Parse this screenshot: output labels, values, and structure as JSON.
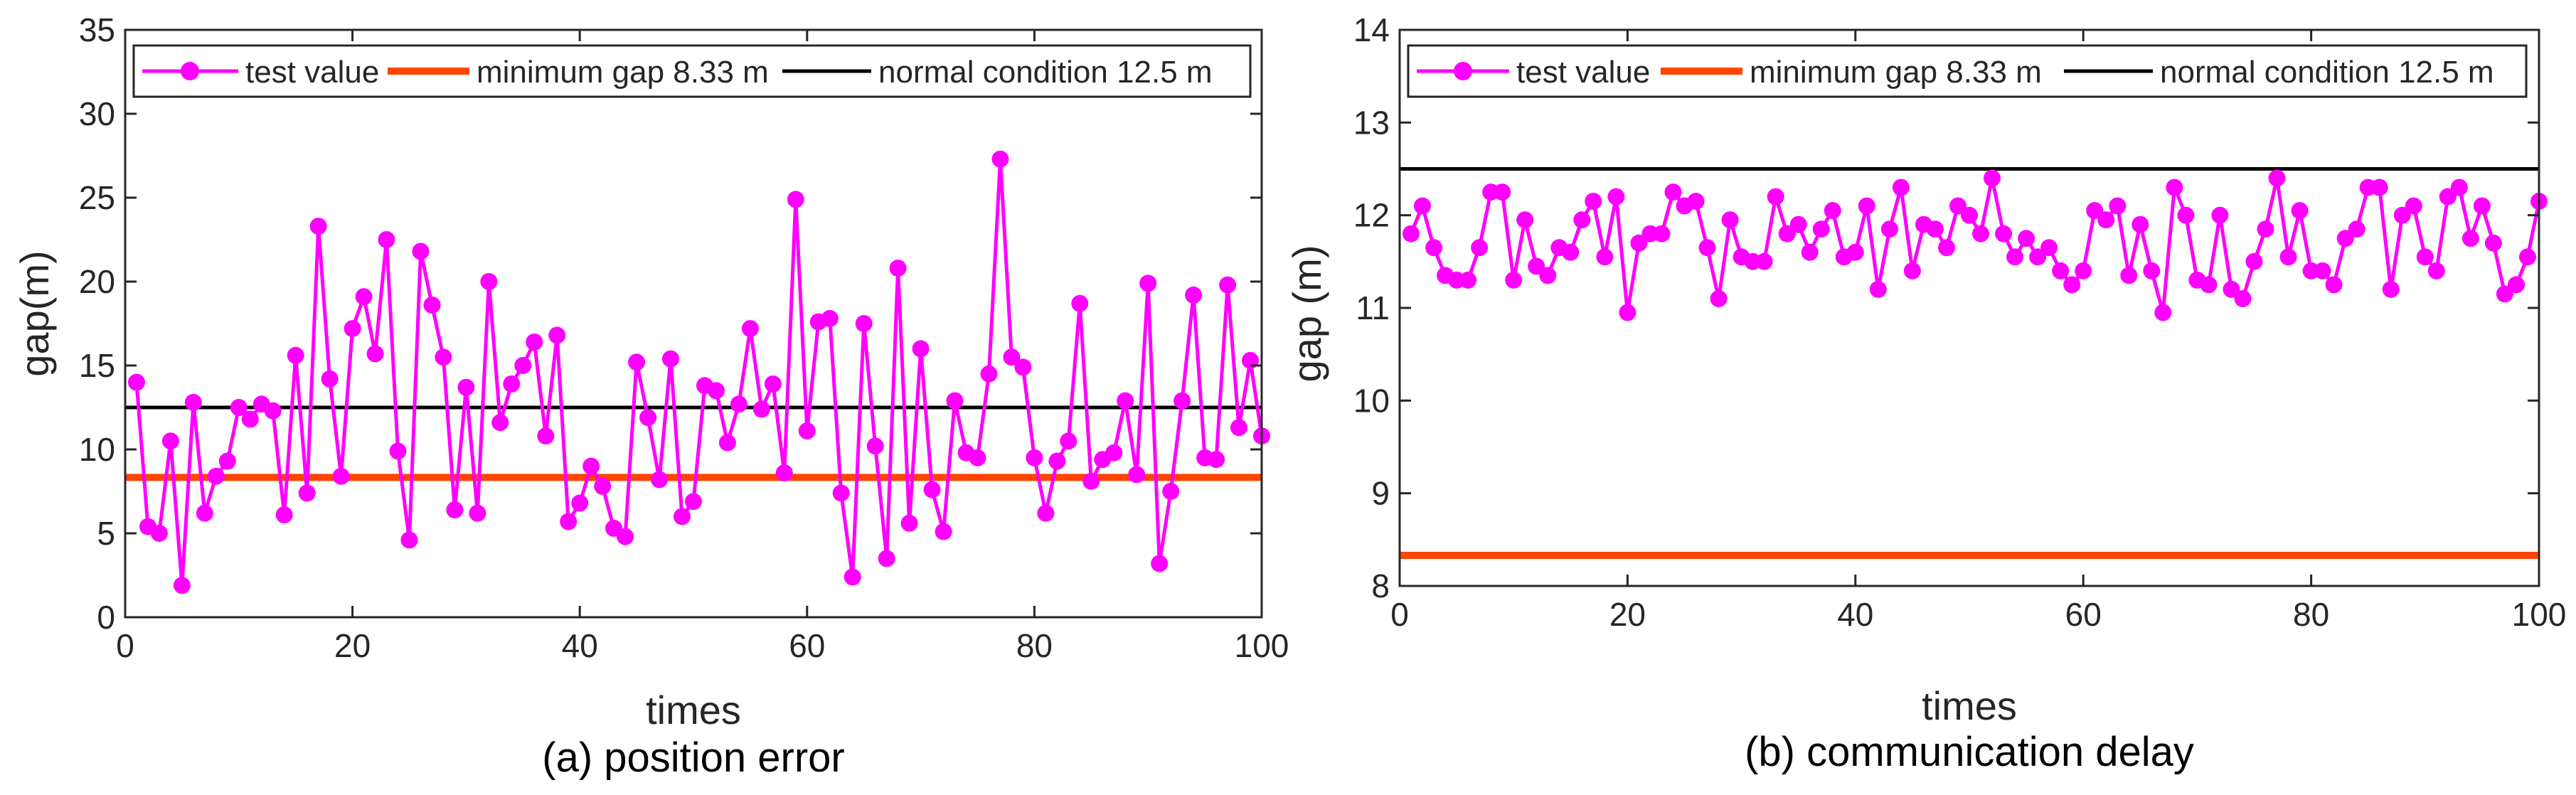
{
  "colors": {
    "test": "#ff00ff",
    "minimum": "#ff4500",
    "normal": "#000000",
    "axis": "#262626"
  },
  "chart_data": [
    {
      "type": "line",
      "caption": "(a) position error",
      "xlabel": "times",
      "ylabel": "gap(m)",
      "xlim": [
        0,
        100
      ],
      "ylim": [
        0,
        35
      ],
      "xticks": [
        0,
        20,
        40,
        60,
        80,
        100
      ],
      "yticks": [
        0,
        5,
        10,
        15,
        20,
        25,
        30,
        35
      ],
      "grid": false,
      "legend_position": "top",
      "series": [
        {
          "name": "test value",
          "marker": "circle",
          "x": [
            1,
            2,
            3,
            4,
            5,
            6,
            7,
            8,
            9,
            10,
            11,
            12,
            13,
            14,
            15,
            16,
            17,
            18,
            19,
            20,
            21,
            22,
            23,
            24,
            25,
            26,
            27,
            28,
            29,
            30,
            31,
            32,
            33,
            34,
            35,
            36,
            37,
            38,
            39,
            40,
            41,
            42,
            43,
            44,
            45,
            46,
            47,
            48,
            49,
            50,
            51,
            52,
            53,
            54,
            55,
            56,
            57,
            58,
            59,
            60,
            61,
            62,
            63,
            64,
            65,
            66,
            67,
            68,
            69,
            70,
            71,
            72,
            73,
            74,
            75,
            76,
            77,
            78,
            79,
            80,
            81,
            82,
            83,
            84,
            85,
            86,
            87,
            88,
            89,
            90,
            91,
            92,
            93,
            94,
            95,
            96,
            97,
            98,
            99,
            100
          ],
          "values": [
            14.0,
            5.4,
            5.0,
            10.5,
            1.9,
            12.8,
            6.2,
            8.4,
            9.3,
            12.5,
            11.8,
            12.7,
            12.3,
            6.1,
            15.6,
            7.4,
            23.3,
            14.2,
            8.4,
            17.2,
            19.1,
            15.7,
            22.5,
            9.9,
            4.6,
            21.8,
            18.6,
            15.5,
            6.4,
            13.7,
            6.2,
            20.0,
            11.6,
            13.9,
            15.0,
            16.4,
            10.8,
            16.8,
            5.7,
            6.8,
            9.0,
            7.8,
            5.3,
            4.8,
            15.2,
            11.9,
            8.2,
            15.4,
            6.0,
            6.9,
            13.8,
            13.5,
            10.4,
            12.7,
            17.2,
            12.4,
            13.9,
            8.6,
            24.9,
            11.1,
            17.6,
            17.8,
            7.4,
            2.4,
            17.5,
            10.2,
            3.5,
            20.8,
            5.6,
            16.0,
            7.6,
            5.1,
            12.9,
            9.8,
            9.5,
            14.5,
            27.3,
            15.5,
            14.9,
            9.5,
            6.2,
            9.3,
            10.5,
            18.7,
            8.1,
            9.4,
            9.8,
            12.9,
            8.5,
            19.9,
            3.2,
            7.5,
            12.9,
            19.2,
            9.5,
            9.4,
            19.8,
            11.3,
            15.3,
            10.8
          ]
        },
        {
          "name": "minimum gap 8.33 m",
          "constant": 8.33
        },
        {
          "name": "normal condition 12.5 m",
          "constant": 12.5
        }
      ]
    },
    {
      "type": "line",
      "caption": "(b) communication delay",
      "xlabel": "times",
      "ylabel": "gap (m)",
      "xlim": [
        0,
        100
      ],
      "ylim": [
        8,
        14
      ],
      "xticks": [
        0,
        20,
        40,
        60,
        80,
        100
      ],
      "yticks": [
        8,
        9,
        10,
        11,
        12,
        13,
        14
      ],
      "grid": false,
      "legend_position": "top",
      "series": [
        {
          "name": "test value",
          "marker": "circle",
          "x": [
            1,
            2,
            3,
            4,
            5,
            6,
            7,
            8,
            9,
            10,
            11,
            12,
            13,
            14,
            15,
            16,
            17,
            18,
            19,
            20,
            21,
            22,
            23,
            24,
            25,
            26,
            27,
            28,
            29,
            30,
            31,
            32,
            33,
            34,
            35,
            36,
            37,
            38,
            39,
            40,
            41,
            42,
            43,
            44,
            45,
            46,
            47,
            48,
            49,
            50,
            51,
            52,
            53,
            54,
            55,
            56,
            57,
            58,
            59,
            60,
            61,
            62,
            63,
            64,
            65,
            66,
            67,
            68,
            69,
            70,
            71,
            72,
            73,
            74,
            75,
            76,
            77,
            78,
            79,
            80,
            81,
            82,
            83,
            84,
            85,
            86,
            87,
            88,
            89,
            90,
            91,
            92,
            93,
            94,
            95,
            96,
            97,
            98,
            99,
            100
          ],
          "values": [
            11.8,
            12.1,
            11.65,
            11.35,
            11.3,
            11.3,
            11.65,
            12.25,
            12.25,
            11.3,
            11.95,
            11.45,
            11.35,
            11.65,
            11.6,
            11.95,
            12.15,
            11.55,
            12.2,
            10.95,
            11.7,
            11.8,
            11.8,
            12.25,
            12.1,
            12.15,
            11.65,
            11.1,
            11.95,
            11.55,
            11.5,
            11.5,
            12.2,
            11.8,
            11.9,
            11.6,
            11.85,
            12.05,
            11.55,
            11.6,
            12.1,
            11.2,
            11.85,
            12.3,
            11.4,
            11.9,
            11.85,
            11.65,
            12.1,
            12.0,
            11.8,
            12.4,
            11.8,
            11.55,
            11.75,
            11.55,
            11.65,
            11.4,
            11.25,
            11.4,
            12.05,
            11.95,
            12.1,
            11.35,
            11.9,
            11.4,
            10.95,
            12.3,
            12.0,
            11.3,
            11.25,
            12.0,
            11.2,
            11.1,
            11.5,
            11.85,
            12.4,
            11.55,
            12.05,
            11.4,
            11.4,
            11.25,
            11.75,
            11.85,
            12.3,
            12.3,
            11.2,
            12.0,
            12.1,
            11.55,
            11.4,
            12.2,
            12.3,
            11.75,
            12.1,
            11.7,
            11.15,
            11.25,
            11.55,
            12.15
          ]
        },
        {
          "name": "minimum gap 8.33 m",
          "constant": 8.33
        },
        {
          "name": "normal condition 12.5 m",
          "constant": 12.5
        }
      ]
    }
  ]
}
